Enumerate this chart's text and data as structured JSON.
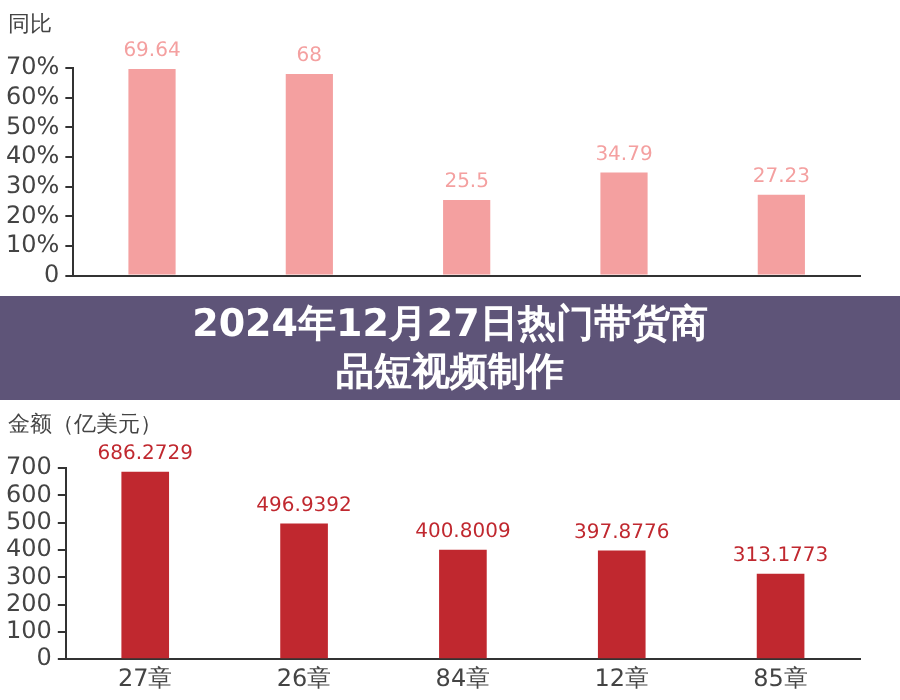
{
  "chart_data": [
    {
      "type": "bar",
      "title": "2024年12月27日热门带货商品短视频制作",
      "ylabel": "同比",
      "categories": [
        null,
        null,
        null,
        null,
        null
      ],
      "series": [
        {
          "color": "#f4a0a0",
          "values": [
            69.64,
            68,
            25.5,
            34.79,
            27.23
          ]
        }
      ],
      "ylim": [
        0,
        70
      ],
      "yticks": [
        {
          "value": 0,
          "label": "0"
        },
        {
          "value": 10,
          "label": "10%"
        },
        {
          "value": 20,
          "label": "20%"
        },
        {
          "value": 30,
          "label": "30%"
        },
        {
          "value": 40,
          "label": "40%"
        },
        {
          "value": 50,
          "label": "50%"
        },
        {
          "value": 60,
          "label": "60%"
        },
        {
          "value": 70,
          "label": "70%"
        }
      ],
      "tick_labels": "y",
      "data_labels": true,
      "grid": false,
      "legend": false
    },
    {
      "type": "bar",
      "ylabel": "金额（亿美元）",
      "categories": [
        "27章",
        "26章",
        "84章",
        "12章",
        "85章"
      ],
      "series": [
        {
          "color": "#c0282f",
          "values": [
            686.2729,
            496.9392,
            400.8009,
            397.8776,
            313.1773
          ]
        }
      ],
      "ylim": [
        0,
        700
      ],
      "yticks": [
        0,
        100,
        200,
        300,
        400,
        500,
        600,
        700
      ],
      "data_labels": true,
      "grid": false,
      "legend": false
    }
  ]
}
